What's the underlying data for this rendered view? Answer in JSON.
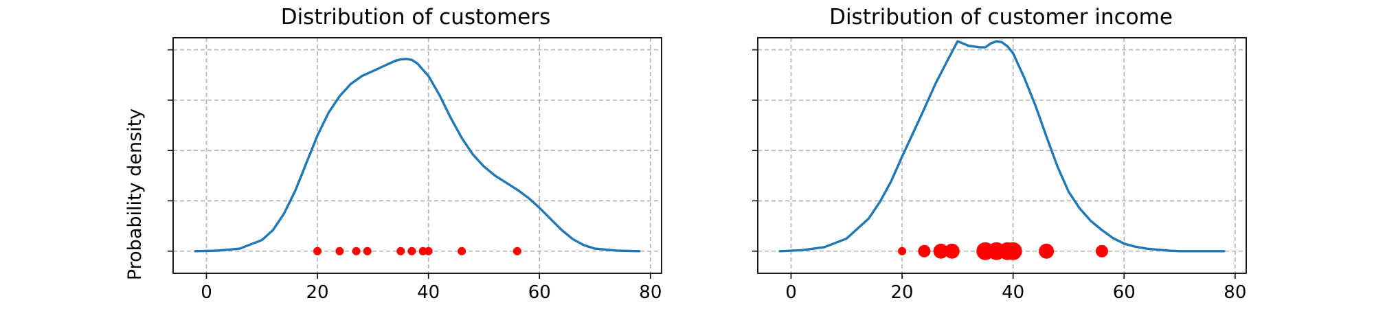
{
  "chart_data": [
    {
      "type": "line",
      "title": "Distribution of customers",
      "xlabel": "",
      "ylabel": "Probability density",
      "xlim": [
        -6,
        82
      ],
      "ylim": [
        -0.0044,
        0.0424
      ],
      "xticks": [
        0,
        20,
        40,
        60,
        80
      ],
      "yticks": [
        0,
        0.01,
        0.02,
        0.03,
        0.04
      ],
      "show_y_tick_labels": false,
      "grid": true,
      "legend": "none",
      "colors": {
        "curve": "#1f77b4",
        "points": "#ff0000",
        "grid": "#b0b0b0"
      },
      "series": [
        {
          "kind": "density-curve",
          "x": [
            -2,
            2,
            6,
            10,
            12,
            14,
            16,
            18,
            20,
            22,
            24,
            26,
            28,
            30,
            32,
            34,
            35,
            36,
            37,
            38,
            40,
            42,
            44,
            46,
            48,
            50,
            52,
            54,
            56,
            58,
            60,
            62,
            64,
            66,
            68,
            70,
            74,
            78
          ],
          "y": [
            0.0,
            0.0001,
            0.0005,
            0.0022,
            0.0042,
            0.0075,
            0.012,
            0.0175,
            0.023,
            0.0275,
            0.0308,
            0.0332,
            0.0348,
            0.0358,
            0.0368,
            0.0378,
            0.0381,
            0.0382,
            0.038,
            0.0373,
            0.0348,
            0.031,
            0.0265,
            0.0225,
            0.0192,
            0.0168,
            0.015,
            0.0136,
            0.0122,
            0.0106,
            0.0086,
            0.0064,
            0.0042,
            0.0024,
            0.0012,
            0.0005,
            0.0001,
            0.0
          ]
        },
        {
          "kind": "observations",
          "x": [
            20,
            24,
            27,
            29,
            35,
            37,
            39,
            40,
            46,
            56
          ],
          "y": [
            0,
            0,
            0,
            0,
            0,
            0,
            0,
            0,
            0,
            0
          ],
          "size": [
            1,
            1,
            1,
            1,
            1,
            1,
            1,
            1,
            1,
            1
          ]
        }
      ]
    },
    {
      "type": "line",
      "title": "Distribution of customer income",
      "xlabel": "",
      "ylabel": "",
      "xlim": [
        -6,
        82
      ],
      "ylim": [
        -0.0044,
        0.0424
      ],
      "xticks": [
        0,
        20,
        40,
        60,
        80
      ],
      "yticks": [
        0,
        0.01,
        0.02,
        0.03,
        0.04
      ],
      "show_y_tick_labels": false,
      "grid": true,
      "legend": "none",
      "colors": {
        "curve": "#1f77b4",
        "points": "#ff0000",
        "grid": "#b0b0b0"
      },
      "series": [
        {
          "kind": "density-curve",
          "x": [
            -2,
            2,
            6,
            10,
            14,
            16,
            18,
            20,
            22,
            24,
            26,
            28,
            30,
            32,
            34,
            35,
            36,
            37,
            38,
            39,
            40,
            42,
            44,
            46,
            48,
            50,
            52,
            54,
            56,
            58,
            60,
            62,
            64,
            66,
            68,
            70,
            74,
            78
          ],
          "y": [
            0.0,
            0.0002,
            0.0008,
            0.0025,
            0.0065,
            0.0098,
            0.0138,
            0.0188,
            0.0235,
            0.0283,
            0.0332,
            0.0375,
            0.0417,
            0.0408,
            0.0405,
            0.0405,
            0.0413,
            0.0417,
            0.0415,
            0.0407,
            0.0393,
            0.0345,
            0.029,
            0.0228,
            0.0168,
            0.0118,
            0.0085,
            0.006,
            0.0042,
            0.0026,
            0.0015,
            0.0009,
            0.0005,
            0.0003,
            0.0001,
            0.0,
            0.0,
            0.0
          ]
        },
        {
          "kind": "observations",
          "x": [
            20,
            24,
            27,
            29,
            35,
            37,
            39,
            40,
            46,
            56
          ],
          "y": [
            0,
            0,
            0,
            0,
            0,
            0,
            0,
            0,
            0,
            0
          ],
          "size": [
            1,
            2,
            3,
            3,
            4,
            4,
            4,
            4,
            3,
            2
          ]
        }
      ]
    }
  ]
}
